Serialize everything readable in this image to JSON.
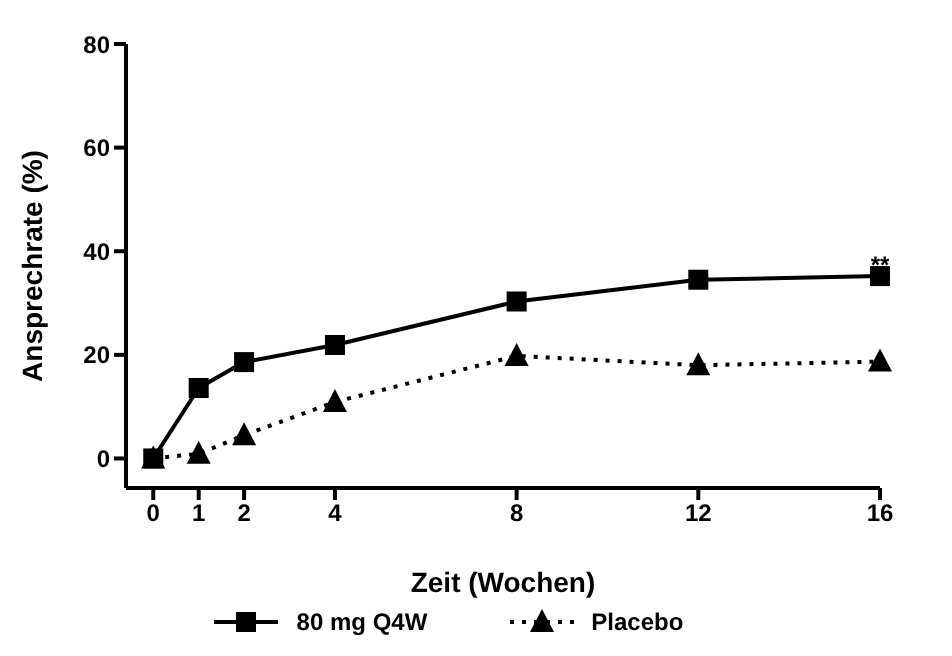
{
  "chart_data": {
    "type": "line",
    "xlabel": "Zeit (Wochen)",
    "ylabel": "Ansprechrate (%)",
    "xlim": [
      -0.6,
      16
    ],
    "xticks": [
      0,
      1,
      2,
      4,
      8,
      12,
      16
    ],
    "ylim": [
      -5.7,
      80
    ],
    "yticks": [
      0,
      20,
      40,
      60,
      80
    ],
    "grid": false,
    "legend": "bottom",
    "series": [
      {
        "name": "80 mg Q4W",
        "color": "#000000",
        "marker": "square",
        "line_style": "solid",
        "x": [
          0,
          1,
          2,
          4,
          8,
          12,
          16
        ],
        "values": [
          0,
          13.6,
          18.6,
          21.9,
          30.3,
          34.5,
          35.2
        ]
      },
      {
        "name": "Placebo",
        "color": "#000000",
        "marker": "triangle",
        "line_style": "dotted",
        "x": [
          0,
          1,
          2,
          4,
          8,
          12,
          16
        ],
        "values": [
          0,
          0.9,
          4.5,
          10.9,
          19.8,
          18,
          18.7
        ]
      }
    ],
    "annotations": [
      {
        "text": "**",
        "x": 16,
        "y": 37.5
      }
    ]
  }
}
